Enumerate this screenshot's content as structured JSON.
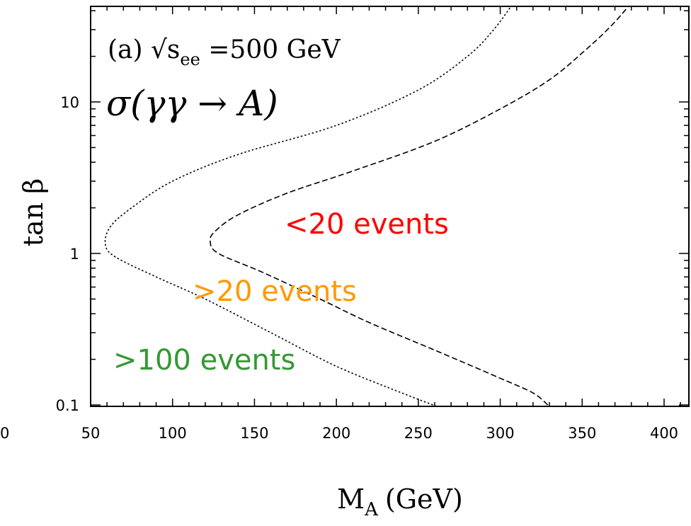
{
  "chart_data": {
    "type": "line",
    "title": "",
    "xlabel": "M",
    "xlabel_sub": "A",
    "xlabel_unit": "(GeV)",
    "ylabel": "tan β",
    "xlim": [
      50,
      420
    ],
    "ylim": [
      0.1,
      40
    ],
    "y_scale": "log",
    "grid": false,
    "x_ticks": [
      50,
      100,
      150,
      200,
      250,
      300,
      350,
      400
    ],
    "x_tick_labels": [
      "50",
      "100",
      "150",
      "200",
      "250",
      "300",
      "350",
      "400"
    ],
    "y_ticks": [
      0.1,
      1,
      10
    ],
    "y_tick_labels": [
      "0.1",
      "1",
      "10"
    ],
    "stray_tick_label": "0",
    "annotations": {
      "energy_prefix": "(a) √s",
      "energy_sub": "ee",
      "energy_value": " =500 GeV",
      "process": "σ(γγ → A)"
    },
    "regions": [
      {
        "label": "<20 events",
        "color": "#ff0000"
      },
      {
        "label": ">20 events",
        "color": "#ff9900"
      },
      {
        "label": ">100 events",
        "color": "#339933"
      }
    ],
    "series": [
      {
        "style": "dotted",
        "points": [
          [
            270,
            0.09
          ],
          [
            240,
            0.12
          ],
          [
            200,
            0.18
          ],
          [
            160,
            0.3
          ],
          [
            120,
            0.5
          ],
          [
            90,
            0.7
          ],
          [
            65,
            0.95
          ],
          [
            59,
            1.15
          ],
          [
            62,
            1.5
          ],
          [
            75,
            2.0
          ],
          [
            100,
            3.0
          ],
          [
            140,
            4.5
          ],
          [
            200,
            7.0
          ],
          [
            250,
            12.0
          ],
          [
            280,
            20.0
          ],
          [
            296,
            30.0
          ],
          [
            308,
            45.0
          ]
        ]
      },
      {
        "style": "dashed",
        "points": [
          [
            329,
            0.1
          ],
          [
            320,
            0.12
          ],
          [
            300,
            0.15
          ],
          [
            260,
            0.23
          ],
          [
            220,
            0.35
          ],
          [
            190,
            0.5
          ],
          [
            155,
            0.75
          ],
          [
            128,
            1.0
          ],
          [
            123,
            1.2
          ],
          [
            126,
            1.4
          ],
          [
            140,
            1.8
          ],
          [
            170,
            2.5
          ],
          [
            210,
            3.5
          ],
          [
            260,
            5.5
          ],
          [
            300,
            9.0
          ],
          [
            330,
            14.0
          ],
          [
            352,
            22.0
          ],
          [
            368,
            32.0
          ],
          [
            380,
            45.0
          ]
        ]
      }
    ]
  },
  "colors": {
    "axis": "#000000",
    "curve": "#000000",
    "less20": "#ff0000",
    "more20": "#ff9900",
    "more100": "#339933"
  }
}
